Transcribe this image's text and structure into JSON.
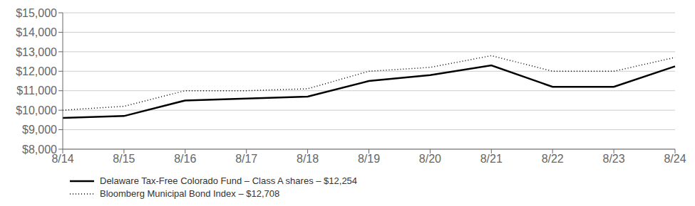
{
  "chart_data": {
    "type": "line",
    "categories": [
      "8/14",
      "8/15",
      "8/16",
      "8/17",
      "8/18",
      "8/19",
      "8/20",
      "8/21",
      "8/22",
      "8/23",
      "8/24"
    ],
    "series": [
      {
        "name": "Delaware Tax-Free Colorado Fund – Class A shares – $12,254",
        "color": "#000000",
        "line_style": "solid",
        "values": [
          9600,
          9700,
          10500,
          10600,
          10700,
          11500,
          11800,
          12300,
          11200,
          11200,
          12254
        ]
      },
      {
        "name": "Bloomberg Municipal Bond Index – $12,708",
        "color": "#000000",
        "line_style": "dotted",
        "values": [
          10000,
          10200,
          11000,
          11000,
          11100,
          12000,
          12200,
          12800,
          12000,
          12000,
          12708
        ]
      }
    ],
    "ylim": [
      8000,
      15000
    ],
    "yticks": [
      {
        "value": 8000,
        "label": "$8,000"
      },
      {
        "value": 9000,
        "label": "$9,000"
      },
      {
        "value": 10000,
        "label": "$10,000"
      },
      {
        "value": 11000,
        "label": "$11,000"
      },
      {
        "value": 12000,
        "label": "$12,000"
      },
      {
        "value": 13000,
        "label": "$13,000"
      },
      {
        "value": 14000,
        "label": "$14,000"
      },
      {
        "value": 15000,
        "label": "$15,000"
      }
    ],
    "grid": true,
    "legend": "bottom"
  }
}
